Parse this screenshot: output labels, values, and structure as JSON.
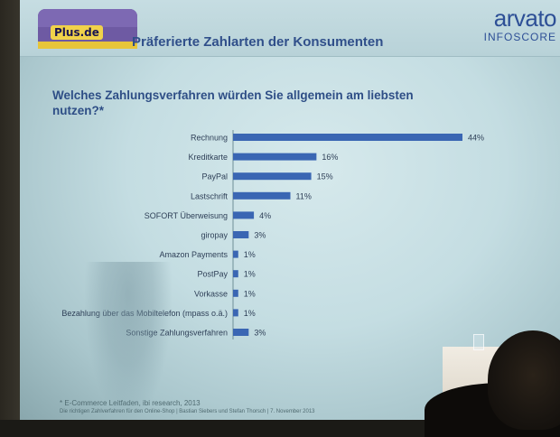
{
  "header": {
    "logo_text": "Plus.de",
    "title": "Präferierte Zahlarten der Konsumenten",
    "brand_name": "arvato",
    "brand_sub": "INFOSCORE"
  },
  "question": "Welches Zahlungsverfahren würden Sie allgemein am liebsten nutzen?*",
  "chart_data": {
    "type": "bar",
    "orientation": "horizontal",
    "categories": [
      "Rechnung",
      "Kreditkarte",
      "PayPal",
      "Lastschrift",
      "SOFORT Überweisung",
      "giropay",
      "Amazon Payments",
      "PostPay",
      "Vorkasse",
      "Bezahlung über das Mobiltelefon (mpass o.ä.)",
      "Sonstige Zahlungsverfahren"
    ],
    "values": [
      44,
      16,
      15,
      11,
      4,
      3,
      1,
      1,
      1,
      1,
      3
    ],
    "value_labels": [
      "44%",
      "16%",
      "15%",
      "11%",
      "4%",
      "3%",
      "1%",
      "1%",
      "1%",
      "1%",
      "3%"
    ],
    "xlim": [
      0,
      44
    ],
    "bar_color": "#3a66b3",
    "grid": false,
    "legend": false
  },
  "footnotes": {
    "line1": "* E-Commerce Leitfaden, ibi research, 2013",
    "line2": "Die richtigen Zahlverfahren für den Online-Shop | Bastian Siebers und Stefan Thorsch | 7. November 2013"
  },
  "colors": {
    "title": "#304f8a",
    "text": "#2e3f57",
    "screen": "#c4dde2"
  }
}
